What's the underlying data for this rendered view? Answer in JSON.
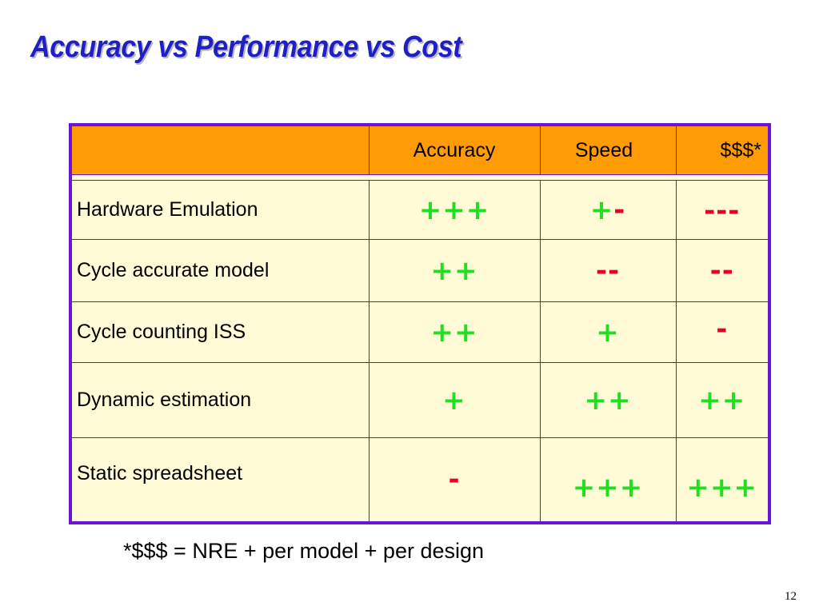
{
  "slide": {
    "title": "Accuracy vs Performance vs Cost",
    "page_number": "12"
  },
  "table": {
    "headers": [
      "",
      "Accuracy",
      "Speed",
      "$$$*"
    ],
    "rows": [
      {
        "label": "Hardware Emulation",
        "accuracy": "+++",
        "speed_plus": "+",
        "speed_minus": "-",
        "cost": "---"
      },
      {
        "label": "Cycle accurate model",
        "accuracy": "++",
        "speed": "--",
        "cost": "--"
      },
      {
        "label": "Cycle counting ISS",
        "accuracy": "++",
        "speed": "+",
        "cost": "-"
      },
      {
        "label": "Dynamic estimation",
        "accuracy": "+",
        "speed": "++",
        "cost": "++"
      },
      {
        "label": "Static spreadsheet",
        "accuracy": "-",
        "speed": "+++",
        "cost": "+++"
      }
    ]
  },
  "footnote": "*$$$ = NRE + per model + per design",
  "colors": {
    "title": "#1f1fc8",
    "header_fill": "#ff9b05",
    "border": "#6a14d9",
    "cell_fill": "#fffbd6",
    "positive": "#22dd22",
    "negative": "#e8002a"
  }
}
